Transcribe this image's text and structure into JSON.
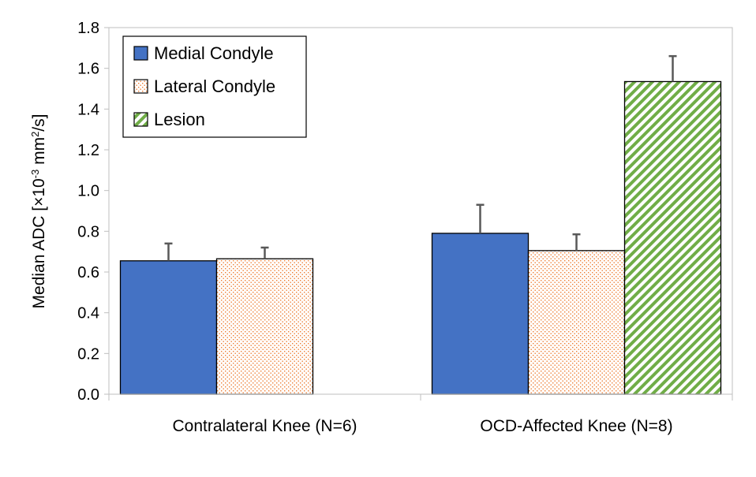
{
  "chart_data": {
    "type": "bar",
    "categories": [
      "Contralateral Knee (N=6)",
      "OCD-Affected Knee (N=8)"
    ],
    "series": [
      {
        "name": "Medial Condyle",
        "values": [
          0.655,
          0.79
        ],
        "errors": [
          0.085,
          0.14
        ],
        "color": "#4472C4",
        "pattern": "solid"
      },
      {
        "name": "Lateral Condyle",
        "values": [
          0.665,
          0.705
        ],
        "errors": [
          0.055,
          0.08
        ],
        "color": "#ED7D31",
        "pattern": "dots"
      },
      {
        "name": "Lesion",
        "values": [
          null,
          1.535
        ],
        "errors": [
          null,
          0.125
        ],
        "color": "#70AD47",
        "pattern": "diagonal-stripes"
      }
    ],
    "ylabel": {
      "prefix": "Median ADC [×10",
      "sup1": "-3",
      "mid": " mm",
      "sup2": "2",
      "suffix": "/s]"
    },
    "ylim": [
      0,
      1.8
    ],
    "yticks": [
      "0.0",
      "0.2",
      "0.4",
      "0.6",
      "0.8",
      "1.0",
      "1.2",
      "1.4",
      "1.6",
      "1.8"
    ],
    "legend_position": "top-left",
    "grid": false
  }
}
